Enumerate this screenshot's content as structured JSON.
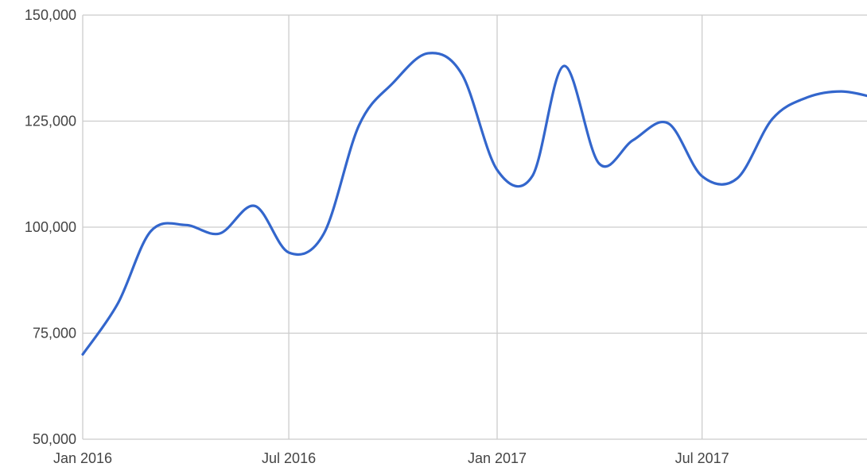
{
  "chart_data": {
    "type": "line",
    "title": "",
    "xlabel": "",
    "ylabel": "",
    "grid": true,
    "legend": "none",
    "ylim": [
      50000,
      150000
    ],
    "xlim": [
      "2016-01-01",
      "2017-12-01"
    ],
    "x_ticks": [
      {
        "label": "Jan 2016",
        "date": "2016-01-01"
      },
      {
        "label": "Jul 2016",
        "date": "2016-07-01"
      },
      {
        "label": "Jan 2017",
        "date": "2017-01-01"
      },
      {
        "label": "Jul 2017",
        "date": "2017-07-01"
      }
    ],
    "y_ticks": [
      {
        "label": "50,000",
        "value": 50000
      },
      {
        "label": "75,000",
        "value": 75000
      },
      {
        "label": "100,000",
        "value": 100000
      },
      {
        "label": "125,000",
        "value": 125000
      },
      {
        "label": "150,000",
        "value": 150000
      }
    ],
    "colors": {
      "series": "#3366cc",
      "grid": "#cccccc",
      "text": "#444444"
    },
    "series": [
      {
        "x": [
          "2016-01-01",
          "2016-02-01",
          "2016-03-01",
          "2016-04-01",
          "2016-05-01",
          "2016-06-01",
          "2016-07-01",
          "2016-08-01",
          "2016-09-01",
          "2016-10-01",
          "2016-11-01",
          "2016-12-01",
          "2017-01-01",
          "2017-02-01",
          "2017-03-01",
          "2017-04-01",
          "2017-05-01",
          "2017-06-01",
          "2017-07-01",
          "2017-08-01",
          "2017-09-01",
          "2017-10-01",
          "2017-11-01",
          "2017-12-01"
        ],
        "values": [
          70000,
          82000,
          99000,
          100500,
          98500,
          105000,
          94000,
          98500,
          124000,
          134000,
          141000,
          136000,
          113500,
          112000,
          138000,
          115000,
          120500,
          124500,
          112000,
          111500,
          125500,
          130500,
          132000,
          130500
        ]
      }
    ]
  }
}
